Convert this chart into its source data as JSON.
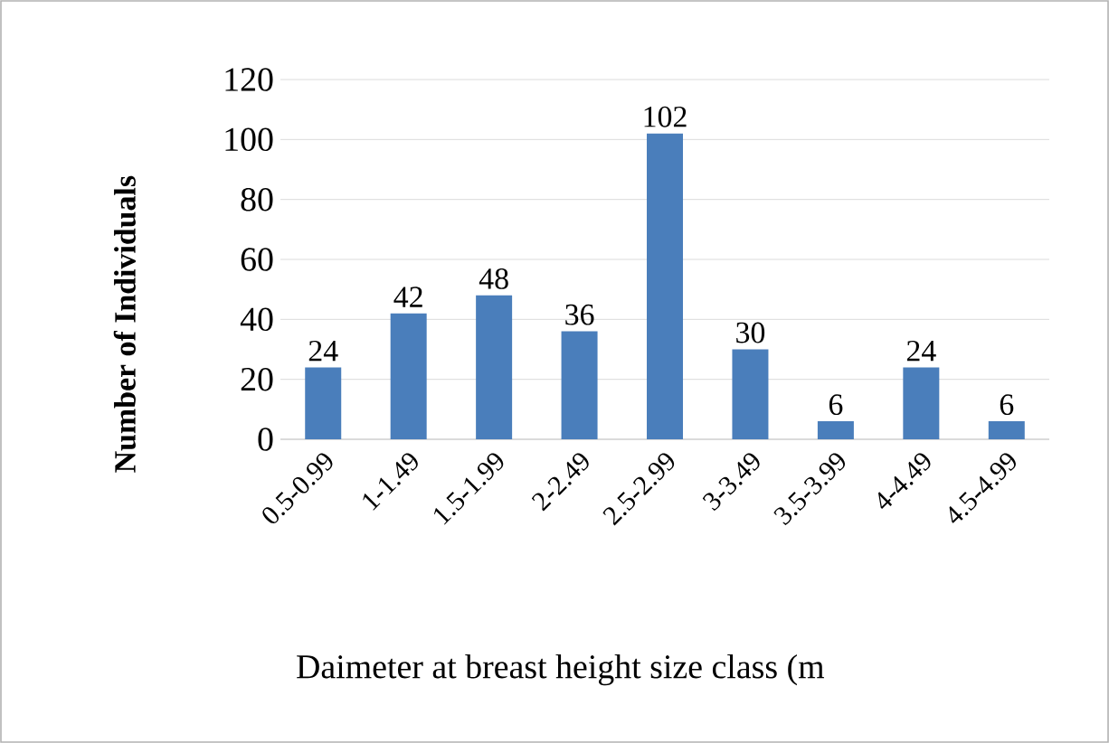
{
  "chart_data": {
    "type": "bar",
    "categories": [
      "0.5-0.99",
      "1-1.49",
      "1.5-1.99",
      "2-2.49",
      "2.5-2.99",
      "3-3.49",
      "3.5-3.99",
      "4-4.49",
      "4.5-4.99"
    ],
    "values": [
      24,
      42,
      48,
      36,
      102,
      30,
      6,
      24,
      6
    ],
    "color": "#4a7ebb",
    "xlabel": "Daimeter at breast height size class (m",
    "ylabel": "Number of Individuals",
    "ylim": [
      0,
      120
    ],
    "yticks": [
      0,
      20,
      40,
      60,
      80,
      100,
      120
    ],
    "grid": "y",
    "data_labels": true
  }
}
